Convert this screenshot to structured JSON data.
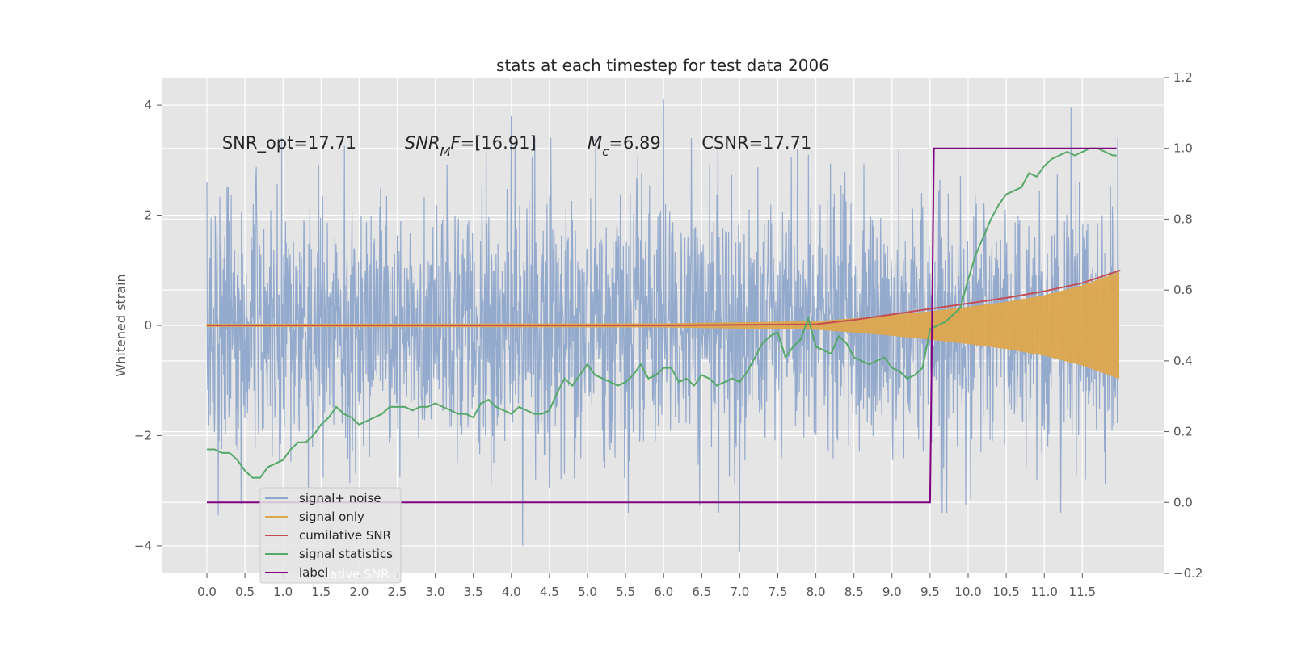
{
  "chart_data": {
    "type": "line",
    "title": "stats at each timestep for test data 2006",
    "ylabel": "Whitened strain",
    "xlim": [
      -0.6,
      12.6
    ],
    "ylim": [
      -4.5,
      4.5
    ],
    "y2lim": [
      -0.2,
      1.2
    ],
    "grid": true,
    "x_ticks": [
      0.0,
      0.5,
      1.0,
      1.5,
      2.0,
      2.5,
      3.0,
      3.5,
      4.0,
      4.5,
      5.0,
      5.5,
      6.0,
      6.5,
      7.0,
      7.5,
      8.0,
      8.5,
      9.0,
      9.5,
      10.0,
      10.5,
      11.0,
      11.5
    ],
    "x_tick_labels": [
      "0.0",
      "0.5",
      "1.0",
      "1.5",
      "2.0",
      "2.5",
      "3.0",
      "3.5",
      "4.0",
      "4.5",
      "5.0",
      "5.5",
      "6.0",
      "6.5",
      "7.0",
      "7.5",
      "8.0",
      "8.5",
      "9.0",
      "9.5",
      "10.0",
      "10.5",
      "11.0",
      "11.5"
    ],
    "y_ticks": [
      -4,
      -2,
      0,
      2,
      4
    ],
    "y_tick_labels": [
      "−4",
      "−2",
      "0",
      "2",
      "4"
    ],
    "y2_ticks": [
      -0.2,
      0.0,
      0.2,
      0.4,
      0.6,
      0.8,
      1.0,
      1.2
    ],
    "y2_tick_labels": [
      "−0.2",
      "0.0",
      "0.2",
      "0.4",
      "0.6",
      "0.8",
      "1.0",
      "1.2"
    ],
    "annotations": [
      {
        "name": "snr-opt-annotation",
        "parts": [
          {
            "text": "SNR_opt=17.71",
            "italic": false
          }
        ],
        "x": 0.2,
        "y": 3.3
      },
      {
        "name": "snr-mf-annotation",
        "parts": [
          {
            "text": "SNR",
            "italic": true
          },
          {
            "text": "M",
            "italic": true,
            "sub": true
          },
          {
            "text": "F",
            "italic": true
          },
          {
            "text": "=[16.91]",
            "italic": false
          }
        ],
        "x": 2.6,
        "y": 3.3
      },
      {
        "name": "mc-annotation",
        "parts": [
          {
            "text": "M",
            "italic": true
          },
          {
            "text": "c",
            "italic": true,
            "sub": true
          },
          {
            "text": "=6.89",
            "italic": false
          }
        ],
        "x": 5.0,
        "y": 3.3
      },
      {
        "name": "csnr-annotation",
        "parts": [
          {
            "text": "CSNR=17.71",
            "italic": false
          }
        ],
        "x": 6.5,
        "y": 3.3
      }
    ],
    "series": [
      {
        "name": "signal+ noise",
        "axis": "left",
        "color": "#8fa6cb",
        "description_only": "noise trace within roughly -4 to 4",
        "extremes": [
          [
            0.0,
            2.6
          ],
          [
            0.15,
            -3.45
          ],
          [
            4.0,
            3.8
          ],
          [
            4.15,
            -4.0
          ],
          [
            6.0,
            4.1
          ],
          [
            7.0,
            -4.1
          ],
          [
            11.35,
            3.95
          ]
        ]
      },
      {
        "name": "signal only",
        "axis": "left",
        "color": "#dda74e",
        "envelope": {
          "x": [
            0.0,
            6.0,
            8.0,
            8.5,
            9.0,
            9.5,
            10.0,
            10.5,
            11.0,
            11.5,
            12.0
          ],
          "amplitude": [
            0.02,
            0.03,
            0.07,
            0.12,
            0.18,
            0.25,
            0.33,
            0.42,
            0.54,
            0.72,
            0.97
          ]
        }
      },
      {
        "name": "cumilative SNR",
        "axis": "left",
        "color": "#c44e52",
        "x": [
          0.0,
          6.0,
          8.0,
          8.5,
          9.0,
          9.5,
          10.0,
          10.5,
          11.0,
          11.5,
          12.0
        ],
        "y": [
          0.0,
          0.0,
          0.02,
          0.1,
          0.2,
          0.3,
          0.4,
          0.5,
          0.62,
          0.77,
          1.0
        ]
      },
      {
        "name": "signal statistics",
        "axis": "right",
        "color": "#55a868",
        "x": [
          0.0,
          0.1,
          0.2,
          0.3,
          0.4,
          0.5,
          0.6,
          0.7,
          0.8,
          0.9,
          1.0,
          1.1,
          1.2,
          1.3,
          1.4,
          1.5,
          1.6,
          1.7,
          1.8,
          1.9,
          2.0,
          2.1,
          2.2,
          2.3,
          2.4,
          2.5,
          2.6,
          2.7,
          2.8,
          2.9,
          3.0,
          3.1,
          3.2,
          3.3,
          3.4,
          3.5,
          3.6,
          3.7,
          3.8,
          3.9,
          4.0,
          4.1,
          4.2,
          4.3,
          4.4,
          4.5,
          4.6,
          4.7,
          4.8,
          4.9,
          5.0,
          5.1,
          5.2,
          5.3,
          5.4,
          5.5,
          5.6,
          5.7,
          5.8,
          5.9,
          6.0,
          6.1,
          6.2,
          6.3,
          6.4,
          6.5,
          6.6,
          6.7,
          6.8,
          6.9,
          7.0,
          7.1,
          7.2,
          7.3,
          7.4,
          7.5,
          7.6,
          7.7,
          7.8,
          7.9,
          8.0,
          8.1,
          8.2,
          8.3,
          8.4,
          8.5,
          8.6,
          8.7,
          8.8,
          8.9,
          9.0,
          9.1,
          9.2,
          9.3,
          9.4,
          9.5,
          9.6,
          9.7,
          9.8,
          9.9,
          10.0,
          10.1,
          10.2,
          10.3,
          10.4,
          10.5,
          10.6,
          10.7,
          10.8,
          10.9,
          11.0,
          11.1,
          11.2,
          11.3,
          11.4,
          11.5,
          11.6,
          11.7,
          11.8,
          11.9,
          11.95
        ],
        "y": [
          0.15,
          0.15,
          0.14,
          0.14,
          0.12,
          0.09,
          0.07,
          0.07,
          0.1,
          0.11,
          0.12,
          0.15,
          0.17,
          0.17,
          0.19,
          0.22,
          0.24,
          0.27,
          0.25,
          0.24,
          0.22,
          0.23,
          0.24,
          0.25,
          0.27,
          0.27,
          0.27,
          0.26,
          0.27,
          0.27,
          0.28,
          0.27,
          0.26,
          0.25,
          0.25,
          0.24,
          0.28,
          0.29,
          0.27,
          0.26,
          0.25,
          0.27,
          0.26,
          0.25,
          0.25,
          0.26,
          0.31,
          0.35,
          0.33,
          0.36,
          0.39,
          0.36,
          0.35,
          0.34,
          0.33,
          0.34,
          0.36,
          0.39,
          0.35,
          0.36,
          0.38,
          0.38,
          0.34,
          0.35,
          0.33,
          0.36,
          0.35,
          0.33,
          0.34,
          0.35,
          0.34,
          0.37,
          0.41,
          0.45,
          0.47,
          0.48,
          0.41,
          0.44,
          0.46,
          0.52,
          0.44,
          0.43,
          0.42,
          0.47,
          0.45,
          0.41,
          0.4,
          0.39,
          0.4,
          0.41,
          0.38,
          0.37,
          0.35,
          0.36,
          0.38,
          0.49,
          0.5,
          0.51,
          0.53,
          0.55,
          0.63,
          0.7,
          0.75,
          0.8,
          0.84,
          0.87,
          0.88,
          0.89,
          0.93,
          0.92,
          0.95,
          0.97,
          0.98,
          0.99,
          0.98,
          0.99,
          1.0,
          1.0,
          0.99,
          0.98,
          0.98
        ]
      },
      {
        "name": "label",
        "axis": "right",
        "color": "#800080",
        "x": [
          0.0,
          9.5,
          9.55,
          11.95
        ],
        "y": [
          0.0,
          0.0,
          1.0,
          1.0
        ]
      }
    ],
    "legend": {
      "placement": "lower-left",
      "entries": [
        "signal+ noise",
        "signal only",
        "cumilative SNR",
        "signal statistics",
        "label"
      ],
      "overlapped_text": "lative SNR"
    }
  }
}
